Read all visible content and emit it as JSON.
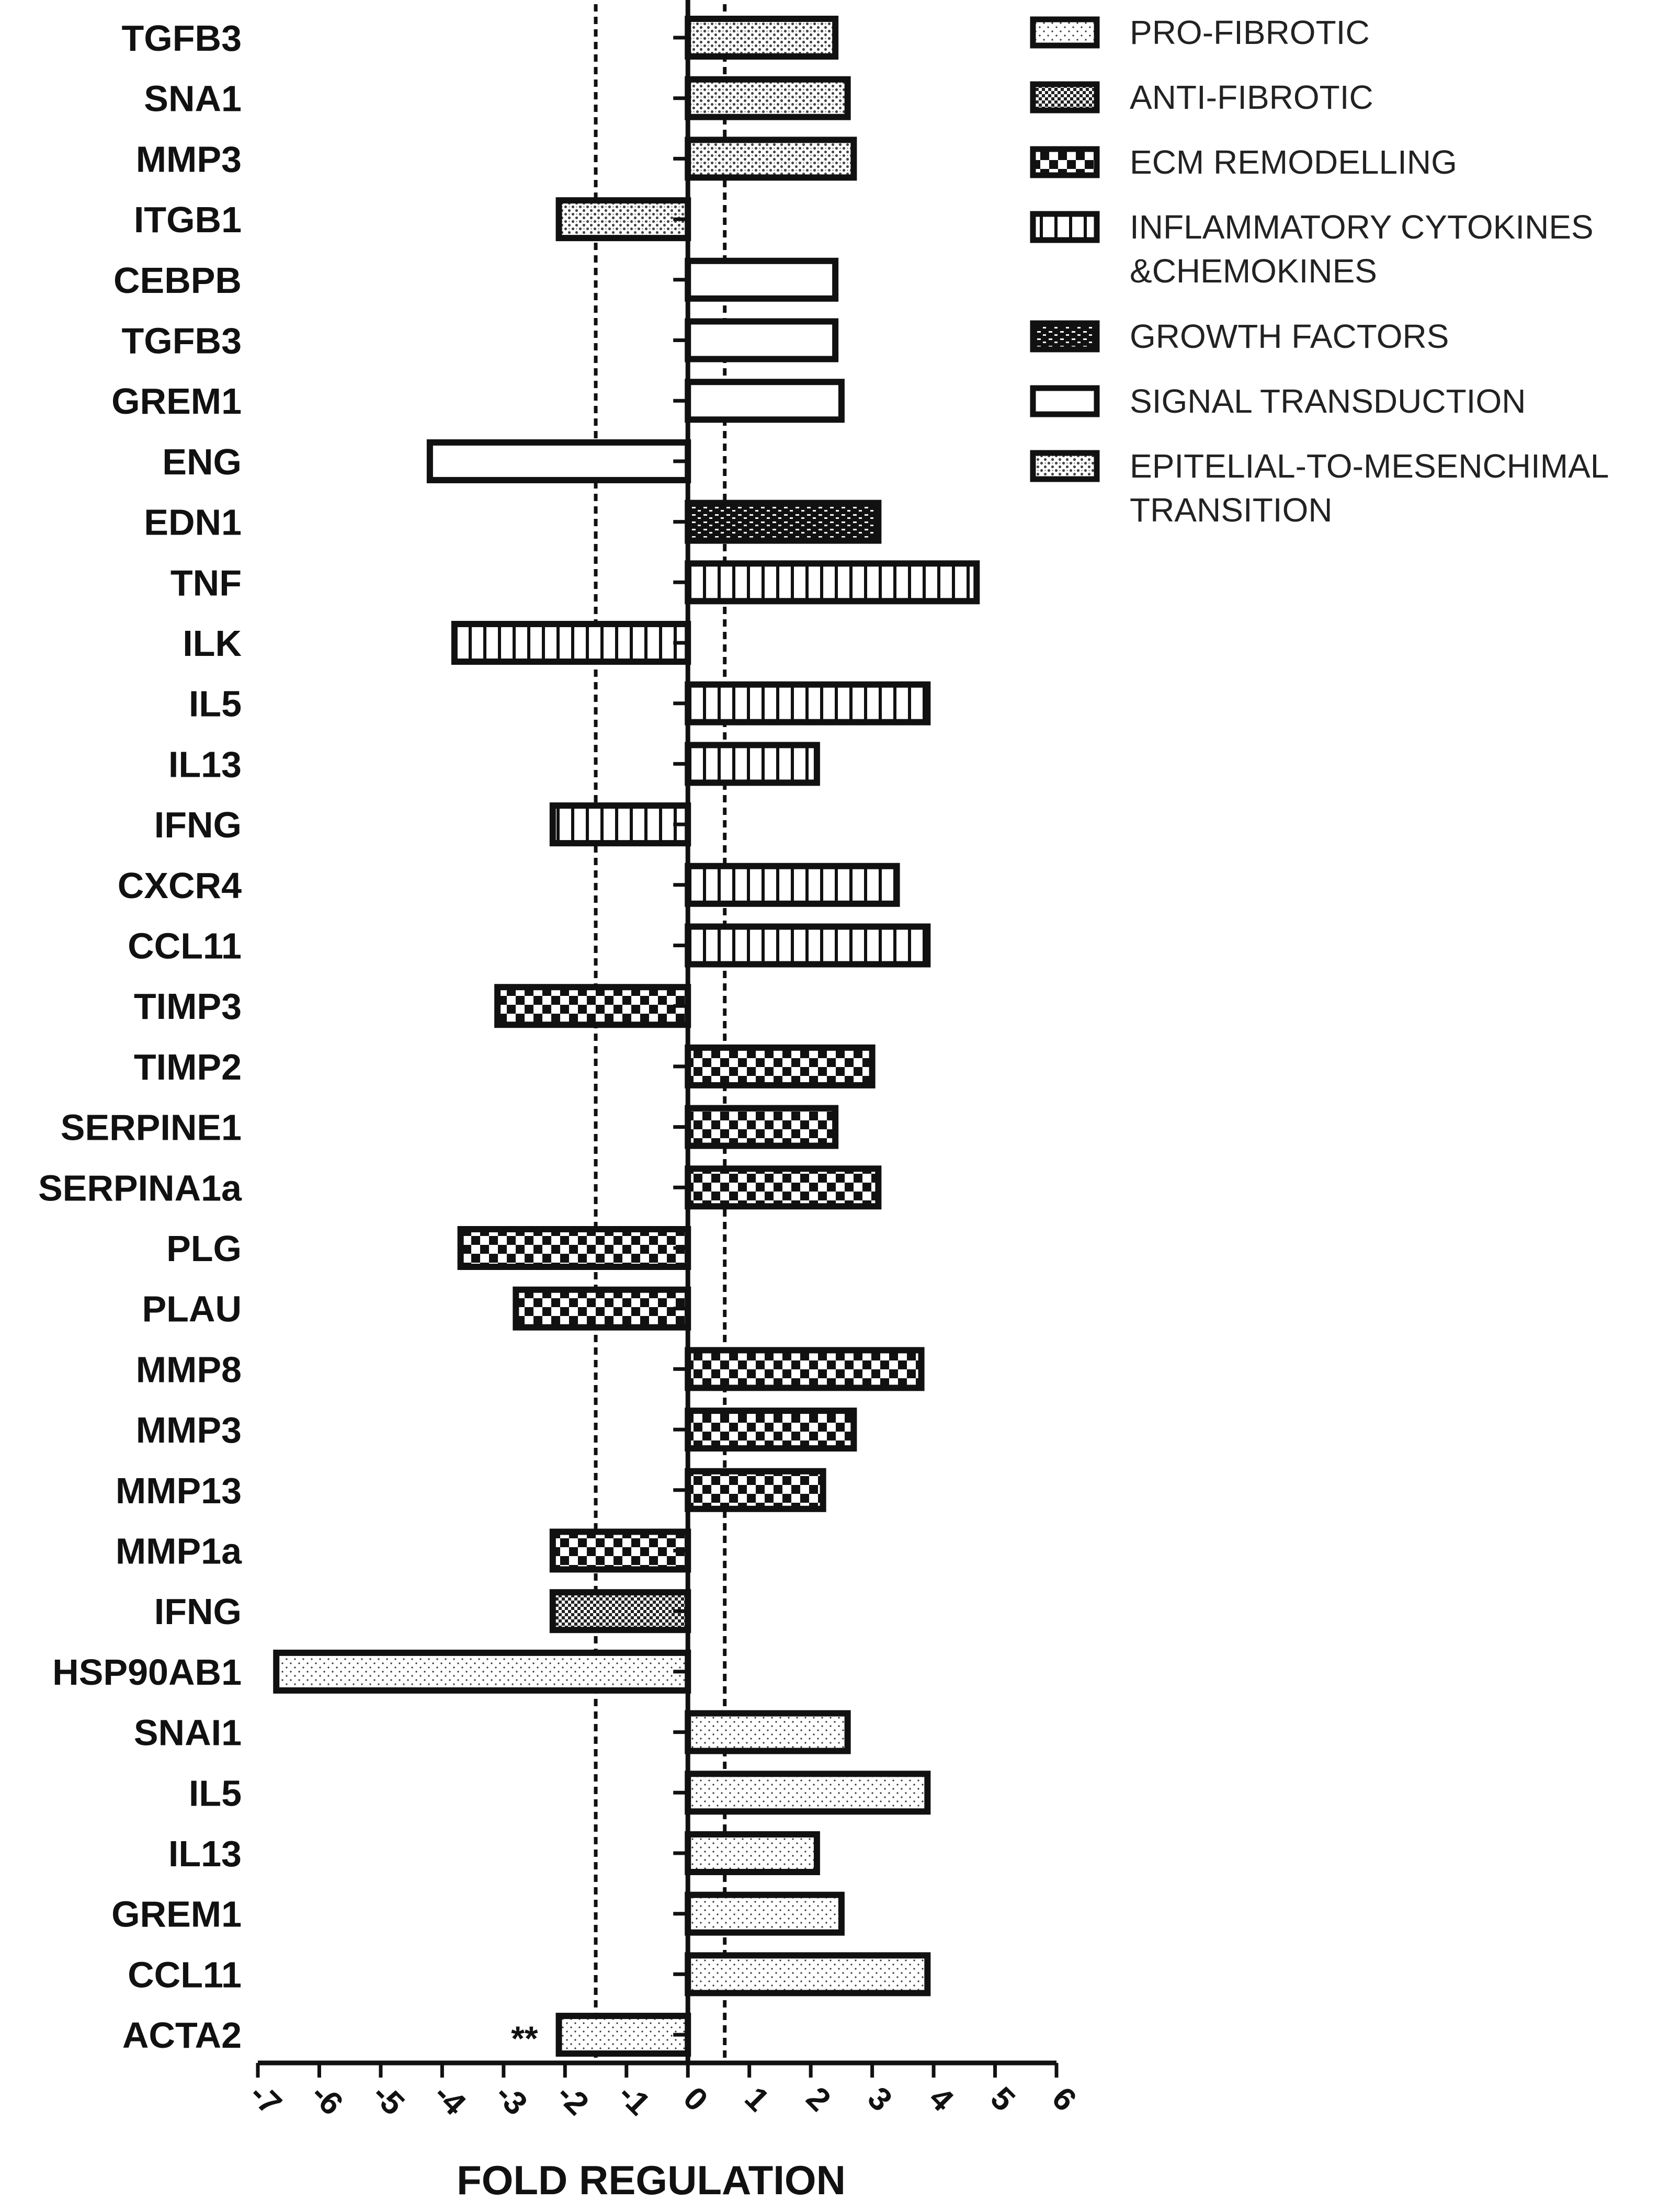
{
  "chart_data": {
    "type": "bar",
    "orientation": "horizontal",
    "title": "",
    "xlabel": "FOLD REGULATION",
    "ylabel": "",
    "xlim": [
      -7,
      6
    ],
    "x_ticks": [
      "-7",
      "-6",
      "-5",
      "-4",
      "-3",
      "-2",
      "-1",
      "0",
      "1",
      "2",
      "3",
      "4",
      "5",
      "6"
    ],
    "reference_lines": [
      -1.5,
      0.6
    ],
    "legend_position": "top-right",
    "legend": [
      {
        "key": "pro",
        "label": "PRO-FIBROTIC"
      },
      {
        "key": "anti",
        "label": "ANTI-FIBROTIC"
      },
      {
        "key": "ecm",
        "label": "ECM REMODELLING"
      },
      {
        "key": "infl",
        "label": "INFLAMMATORY CYTOKINES",
        "label2": "&CHEMOKINES"
      },
      {
        "key": "growth",
        "label": "GROWTH FACTORS"
      },
      {
        "key": "signal",
        "label": "SIGNAL TRANSDUCTION"
      },
      {
        "key": "emt",
        "label": "EPITELIAL-TO-MESENCHIMAL",
        "label2": "TRANSITION"
      }
    ],
    "bars": [
      {
        "gene": "TGFB3",
        "value": 2.4,
        "category": "emt"
      },
      {
        "gene": "SNA1",
        "value": 2.6,
        "category": "emt"
      },
      {
        "gene": "MMP3",
        "value": 2.7,
        "category": "emt"
      },
      {
        "gene": "ITGB1",
        "value": -2.1,
        "category": "emt"
      },
      {
        "gene": "CEBPB",
        "value": 2.4,
        "category": "signal"
      },
      {
        "gene": "TGFB3",
        "value": 2.4,
        "category": "signal"
      },
      {
        "gene": "GREM1",
        "value": 2.5,
        "category": "signal"
      },
      {
        "gene": "ENG",
        "value": -4.2,
        "category": "signal"
      },
      {
        "gene": "EDN1",
        "value": 3.1,
        "category": "growth"
      },
      {
        "gene": "TNF",
        "value": 4.7,
        "category": "infl"
      },
      {
        "gene": "ILK",
        "value": -3.8,
        "category": "infl"
      },
      {
        "gene": "IL5",
        "value": 3.9,
        "category": "infl"
      },
      {
        "gene": "IL13",
        "value": 2.1,
        "category": "infl"
      },
      {
        "gene": "IFNG",
        "value": -2.2,
        "category": "infl"
      },
      {
        "gene": "CXCR4",
        "value": 3.4,
        "category": "infl"
      },
      {
        "gene": "CCL11",
        "value": 3.9,
        "category": "infl"
      },
      {
        "gene": "TIMP3",
        "value": -3.1,
        "category": "ecm"
      },
      {
        "gene": "TIMP2",
        "value": 3.0,
        "category": "ecm"
      },
      {
        "gene": "SERPINE1",
        "value": 2.4,
        "category": "ecm"
      },
      {
        "gene": "SERPINA1a",
        "value": 3.1,
        "category": "ecm"
      },
      {
        "gene": "PLG",
        "value": -3.7,
        "category": "ecm"
      },
      {
        "gene": "PLAU",
        "value": -2.8,
        "category": "ecm"
      },
      {
        "gene": "MMP8",
        "value": 3.8,
        "category": "ecm"
      },
      {
        "gene": "MMP3",
        "value": 2.7,
        "category": "ecm"
      },
      {
        "gene": "MMP13",
        "value": 2.2,
        "category": "ecm"
      },
      {
        "gene": "MMP1a",
        "value": -2.2,
        "category": "ecm"
      },
      {
        "gene": "IFNG",
        "value": -2.2,
        "category": "anti"
      },
      {
        "gene": "HSP90AB1",
        "value": -6.7,
        "category": "pro"
      },
      {
        "gene": "SNAI1",
        "value": 2.6,
        "category": "pro"
      },
      {
        "gene": "IL5",
        "value": 3.9,
        "category": "pro"
      },
      {
        "gene": "IL13",
        "value": 2.1,
        "category": "pro"
      },
      {
        "gene": "GREM1",
        "value": 2.5,
        "category": "pro"
      },
      {
        "gene": "CCL11",
        "value": 3.9,
        "category": "pro"
      },
      {
        "gene": "ACTA2",
        "value": -2.1,
        "category": "pro",
        "annotation": "**"
      }
    ]
  }
}
